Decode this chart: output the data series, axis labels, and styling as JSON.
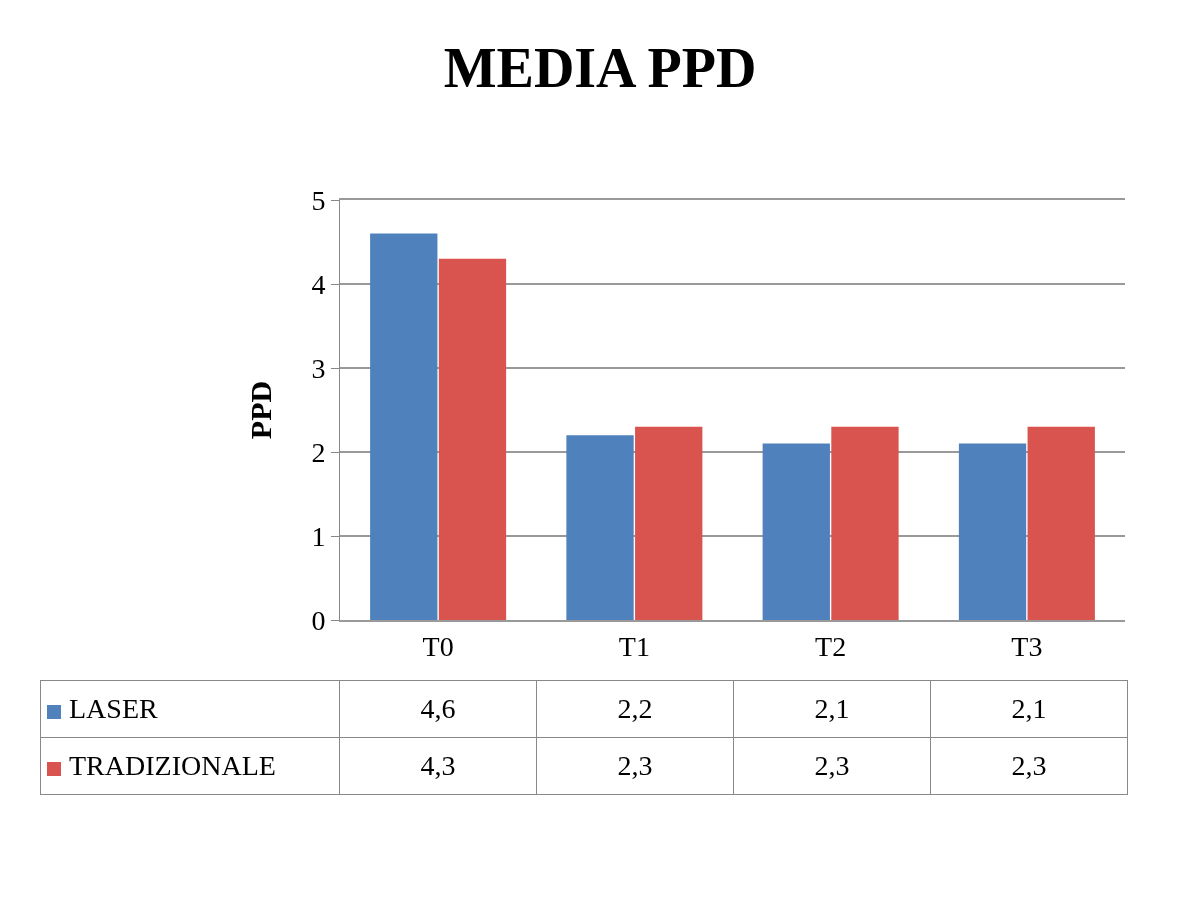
{
  "chart_data": {
    "type": "bar",
    "title": "MEDIA PPD",
    "ylabel": "PPD",
    "categories": [
      "T0",
      "T1",
      "T2",
      "T3"
    ],
    "series": [
      {
        "name": "LASER",
        "color": "#4f81bd",
        "values": [
          4.6,
          2.2,
          2.1,
          2.1
        ],
        "value_labels": [
          "4,6",
          "2,2",
          "2,1",
          "2,1"
        ]
      },
      {
        "name": "TRADIZIONALE",
        "color": "#d9534f",
        "values": [
          4.3,
          2.3,
          2.3,
          2.3
        ],
        "value_labels": [
          "4,3",
          "2,3",
          "2,3",
          "2,3"
        ]
      }
    ],
    "ylim": [
      0,
      5
    ],
    "yticks": [
      0,
      1,
      2,
      3,
      4,
      5
    ],
    "grid": "y",
    "legend": "bottom"
  }
}
